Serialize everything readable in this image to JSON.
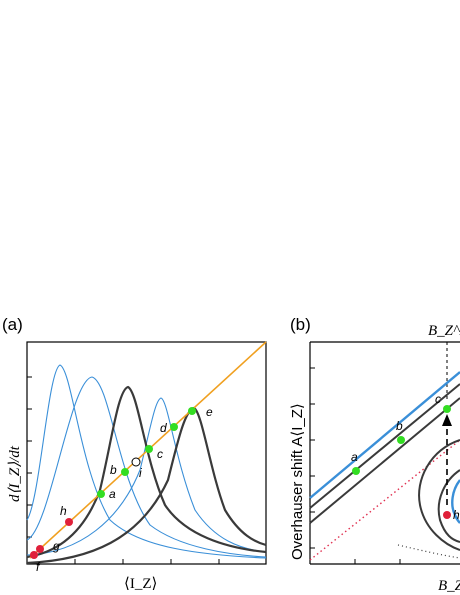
{
  "panel_a": {
    "label": "(a)",
    "ylabel": "d⟨I_Z⟩/dt",
    "xlabel": "⟨I_Z⟩",
    "points": [
      "f",
      "g",
      "h",
      "a",
      "b",
      "i",
      "c",
      "d",
      "e"
    ]
  },
  "panel_b": {
    "label": "(b)",
    "ylabel": "Overhauser shift A⟨I_Z⟩",
    "xlabel": "B_Z",
    "top_label": "B_Z^L",
    "points": [
      "a",
      "b",
      "c",
      "h"
    ]
  },
  "colors": {
    "dark_curve": "#3a3a3a",
    "blue_curve": "#3a8fd8",
    "orange_line": "#f0a020",
    "green_point": "#33dd22",
    "red_point": "#e0203a",
    "red_dotted": "#e03050"
  }
}
